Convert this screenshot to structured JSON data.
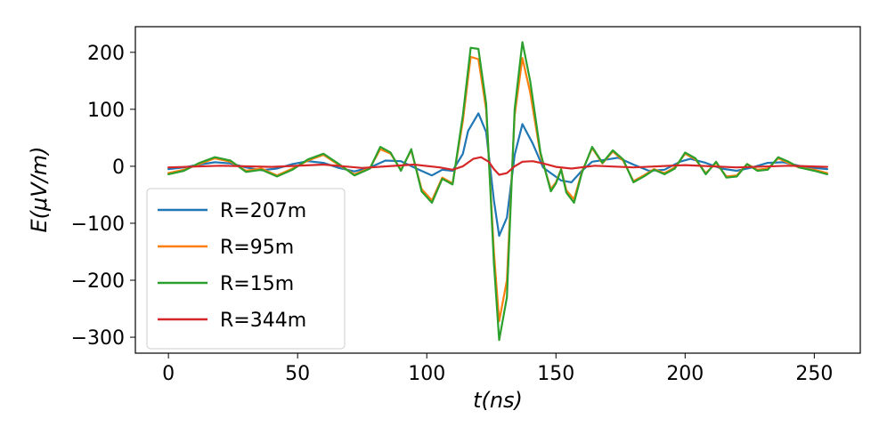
{
  "chart_data": {
    "type": "line",
    "xlabel": "t(ns)",
    "ylabel": "E(μV/m)",
    "xlim": [
      -12.8,
      267.8
    ],
    "ylim": [
      -328,
      245
    ],
    "xticks": [
      0,
      50,
      100,
      150,
      200,
      250
    ],
    "yticks": [
      200,
      100,
      0,
      -100,
      -200,
      -300
    ],
    "xtick_labels": [
      "0",
      "50",
      "100",
      "150",
      "200",
      "250"
    ],
    "ytick_labels": [
      "200",
      "100",
      "0",
      "−100",
      "−200",
      "−300"
    ],
    "grid": false,
    "legend_position": "lower-left",
    "series": [
      {
        "name": "R=207m",
        "color": "#1f77b4",
        "points": [
          [
            0,
            -5
          ],
          [
            6,
            -2
          ],
          [
            12,
            3
          ],
          [
            18,
            7
          ],
          [
            24,
            5
          ],
          [
            30,
            -2
          ],
          [
            36,
            -7
          ],
          [
            42,
            -4
          ],
          [
            48,
            4
          ],
          [
            54,
            9
          ],
          [
            60,
            6
          ],
          [
            66,
            -3
          ],
          [
            72,
            -9
          ],
          [
            78,
            -2
          ],
          [
            84,
            10
          ],
          [
            90,
            9
          ],
          [
            96,
            -4
          ],
          [
            102,
            -16
          ],
          [
            106,
            -6
          ],
          [
            110,
            -8
          ],
          [
            114,
            22
          ],
          [
            116,
            62
          ],
          [
            120,
            93
          ],
          [
            123,
            60
          ],
          [
            126,
            -60
          ],
          [
            128,
            -122
          ],
          [
            131,
            -90
          ],
          [
            134,
            20
          ],
          [
            137,
            74
          ],
          [
            141,
            40
          ],
          [
            145,
            -2
          ],
          [
            148,
            -12
          ],
          [
            152,
            -25
          ],
          [
            156,
            -28
          ],
          [
            160,
            -8
          ],
          [
            164,
            8
          ],
          [
            170,
            12
          ],
          [
            174,
            15
          ],
          [
            180,
            3
          ],
          [
            186,
            -8
          ],
          [
            192,
            -6
          ],
          [
            198,
            8
          ],
          [
            202,
            13
          ],
          [
            208,
            6
          ],
          [
            214,
            -4
          ],
          [
            220,
            -8
          ],
          [
            226,
            -2
          ],
          [
            232,
            6
          ],
          [
            238,
            7
          ],
          [
            244,
            1
          ],
          [
            250,
            -3
          ],
          [
            255,
            -5
          ]
        ]
      },
      {
        "name": "R=95m",
        "color": "#ff7f0e",
        "points": [
          [
            0,
            -12
          ],
          [
            6,
            -6
          ],
          [
            12,
            4
          ],
          [
            18,
            14
          ],
          [
            24,
            8
          ],
          [
            30,
            -8
          ],
          [
            36,
            -4
          ],
          [
            42,
            -16
          ],
          [
            48,
            -4
          ],
          [
            54,
            10
          ],
          [
            60,
            20
          ],
          [
            66,
            2
          ],
          [
            72,
            -14
          ],
          [
            78,
            -3
          ],
          [
            82,
            30
          ],
          [
            86,
            22
          ],
          [
            90,
            -6
          ],
          [
            94,
            28
          ],
          [
            98,
            -40
          ],
          [
            102,
            -60
          ],
          [
            106,
            -20
          ],
          [
            110,
            -30
          ],
          [
            114,
            80
          ],
          [
            117,
            192
          ],
          [
            120,
            188
          ],
          [
            123,
            100
          ],
          [
            126,
            -150
          ],
          [
            128,
            -272
          ],
          [
            131,
            -200
          ],
          [
            134,
            90
          ],
          [
            137,
            190
          ],
          [
            140,
            130
          ],
          [
            144,
            20
          ],
          [
            148,
            -40
          ],
          [
            150,
            -28
          ],
          [
            152,
            -5
          ],
          [
            154,
            -42
          ],
          [
            157,
            -58
          ],
          [
            160,
            -10
          ],
          [
            164,
            32
          ],
          [
            168,
            5
          ],
          [
            172,
            26
          ],
          [
            176,
            10
          ],
          [
            180,
            -26
          ],
          [
            184,
            -16
          ],
          [
            188,
            -5
          ],
          [
            192,
            -12
          ],
          [
            196,
            -2
          ],
          [
            200,
            22
          ],
          [
            204,
            12
          ],
          [
            208,
            -12
          ],
          [
            212,
            6
          ],
          [
            216,
            -18
          ],
          [
            220,
            -16
          ],
          [
            224,
            4
          ],
          [
            228,
            -6
          ],
          [
            232,
            -4
          ],
          [
            236,
            14
          ],
          [
            240,
            6
          ],
          [
            244,
            -2
          ],
          [
            250,
            -6
          ],
          [
            255,
            -12
          ]
        ]
      },
      {
        "name": "R=15m",
        "color": "#2ca02c",
        "points": [
          [
            0,
            -14
          ],
          [
            6,
            -8
          ],
          [
            12,
            6
          ],
          [
            18,
            16
          ],
          [
            24,
            10
          ],
          [
            30,
            -10
          ],
          [
            36,
            -6
          ],
          [
            42,
            -18
          ],
          [
            48,
            -6
          ],
          [
            54,
            12
          ],
          [
            60,
            22
          ],
          [
            66,
            4
          ],
          [
            72,
            -16
          ],
          [
            78,
            -4
          ],
          [
            82,
            34
          ],
          [
            86,
            24
          ],
          [
            90,
            -8
          ],
          [
            94,
            30
          ],
          [
            98,
            -44
          ],
          [
            102,
            -64
          ],
          [
            106,
            -22
          ],
          [
            110,
            -32
          ],
          [
            114,
            90
          ],
          [
            117,
            208
          ],
          [
            120,
            206
          ],
          [
            123,
            110
          ],
          [
            126,
            -170
          ],
          [
            128,
            -305
          ],
          [
            131,
            -230
          ],
          [
            134,
            100
          ],
          [
            137,
            218
          ],
          [
            140,
            150
          ],
          [
            144,
            24
          ],
          [
            148,
            -44
          ],
          [
            150,
            -30
          ],
          [
            152,
            -6
          ],
          [
            154,
            -46
          ],
          [
            157,
            -64
          ],
          [
            160,
            -12
          ],
          [
            164,
            34
          ],
          [
            168,
            6
          ],
          [
            172,
            28
          ],
          [
            176,
            12
          ],
          [
            180,
            -28
          ],
          [
            184,
            -18
          ],
          [
            188,
            -6
          ],
          [
            192,
            -14
          ],
          [
            196,
            -4
          ],
          [
            200,
            24
          ],
          [
            204,
            14
          ],
          [
            208,
            -14
          ],
          [
            212,
            8
          ],
          [
            216,
            -20
          ],
          [
            220,
            -18
          ],
          [
            224,
            4
          ],
          [
            228,
            -8
          ],
          [
            232,
            -6
          ],
          [
            236,
            16
          ],
          [
            240,
            8
          ],
          [
            244,
            -2
          ],
          [
            250,
            -8
          ],
          [
            255,
            -14
          ]
        ]
      },
      {
        "name": "R=344m",
        "color": "#d62728",
        "points": [
          [
            0,
            -2
          ],
          [
            20,
            1
          ],
          [
            40,
            -1
          ],
          [
            60,
            3
          ],
          [
            75,
            -3
          ],
          [
            85,
            0
          ],
          [
            95,
            3
          ],
          [
            105,
            -2
          ],
          [
            110,
            -6
          ],
          [
            114,
            0
          ],
          [
            118,
            13
          ],
          [
            121,
            16
          ],
          [
            124,
            8
          ],
          [
            126,
            -5
          ],
          [
            128,
            -15
          ],
          [
            131,
            -12
          ],
          [
            134,
            0
          ],
          [
            137,
            8
          ],
          [
            141,
            9
          ],
          [
            145,
            5
          ],
          [
            150,
            -1
          ],
          [
            156,
            -4
          ],
          [
            165,
            1
          ],
          [
            180,
            -2
          ],
          [
            200,
            2
          ],
          [
            220,
            -2
          ],
          [
            240,
            1
          ],
          [
            255,
            -1
          ]
        ]
      }
    ]
  }
}
